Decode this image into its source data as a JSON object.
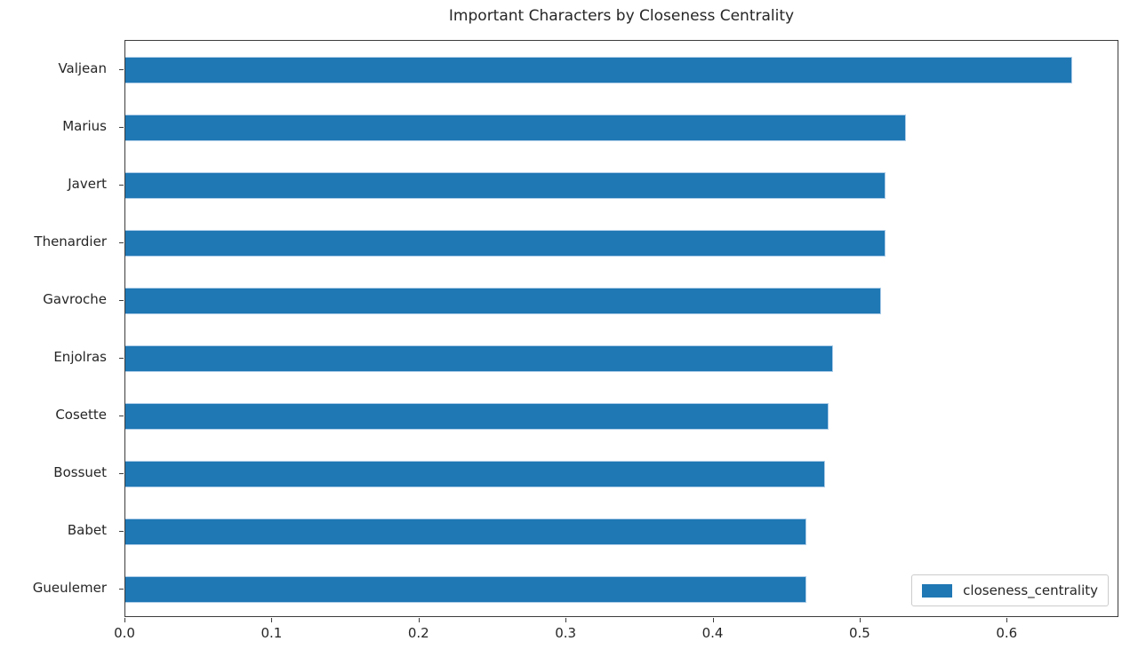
{
  "chart_data": {
    "type": "bar",
    "orientation": "horizontal",
    "title": "Important Characters by Closeness Centrality",
    "categories": [
      "Valjean",
      "Marius",
      "Javert",
      "Thenardier",
      "Gavroche",
      "Enjolras",
      "Cosette",
      "Bossuet",
      "Babet",
      "Gueulemer"
    ],
    "values": [
      0.644,
      0.531,
      0.517,
      0.517,
      0.514,
      0.481,
      0.478,
      0.476,
      0.463,
      0.463
    ],
    "series_name": "closeness_centrality",
    "xlabel": "",
    "ylabel": "",
    "xlim": [
      0,
      0.676
    ],
    "x_ticks": [
      0.0,
      0.1,
      0.2,
      0.3,
      0.4,
      0.5,
      0.6
    ],
    "x_tick_labels": [
      "0.0",
      "0.1",
      "0.2",
      "0.3",
      "0.4",
      "0.5",
      "0.6"
    ],
    "bar_color": "#1f77b4",
    "bar_edge_color": "#aecde8",
    "grid": false,
    "legend_position": "lower right"
  }
}
